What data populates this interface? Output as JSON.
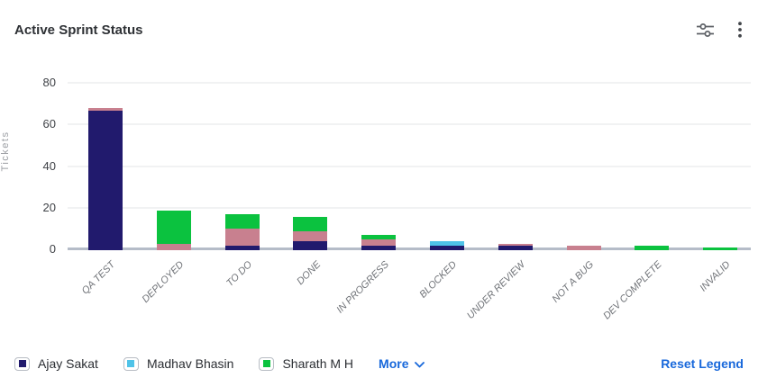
{
  "header": {
    "title": "Active Sprint Status"
  },
  "chart_data": {
    "type": "bar",
    "stacked": true,
    "title": "Active Sprint Status",
    "xlabel": "",
    "ylabel": "Tickets",
    "ylim": [
      0,
      80
    ],
    "yticks": [
      0,
      20,
      40,
      60,
      80
    ],
    "grid": true,
    "legend_position": "bottom",
    "categories": [
      "QA TEST",
      "DEPLOYED",
      "TO DO",
      "DONE",
      "IN PROGRESS",
      "BLOCKED",
      "UNDER REVIEW",
      "NOT A BUG",
      "DEV COMPLETE",
      "INVALID"
    ],
    "series": [
      {
        "id": "ajay-sakat",
        "name": "Ajay Sakat",
        "color": "#211a6d",
        "values": [
          67,
          0,
          2,
          4,
          2,
          2,
          2,
          0,
          0,
          0
        ]
      },
      {
        "id": "rose-series",
        "name": "",
        "color": "#c8808f",
        "values": [
          1,
          3,
          8,
          5,
          3,
          0,
          1,
          2,
          0,
          0
        ]
      },
      {
        "id": "madhav-bhasin",
        "name": "Madhav Bhasin",
        "color": "#4fc3e8",
        "values": [
          0,
          0,
          0,
          0,
          0,
          2,
          0,
          0,
          0,
          0
        ]
      },
      {
        "id": "sharath-m-h",
        "name": "Sharath M H",
        "color": "#0bc23f",
        "values": [
          0,
          16,
          7,
          7,
          2,
          0,
          0,
          0,
          2,
          1
        ]
      }
    ],
    "totals": [
      68,
      19,
      17,
      16,
      7,
      4,
      3,
      2,
      2,
      1
    ]
  },
  "legend": {
    "visible_items": [
      {
        "id": "ajay-sakat",
        "label": "Ajay Sakat",
        "color": "#211a6d"
      },
      {
        "id": "madhav-bhasin",
        "label": "Madhav Bhasin",
        "color": "#4fc3e8"
      },
      {
        "id": "sharath-m-h",
        "label": "Sharath M H",
        "color": "#0bc23f"
      }
    ],
    "more_label": "More",
    "reset_label": "Reset Legend"
  },
  "colors": {
    "link_blue": "#1868db",
    "axis_line": "#b5bcc8",
    "gridline": "#f1f2f3"
  }
}
